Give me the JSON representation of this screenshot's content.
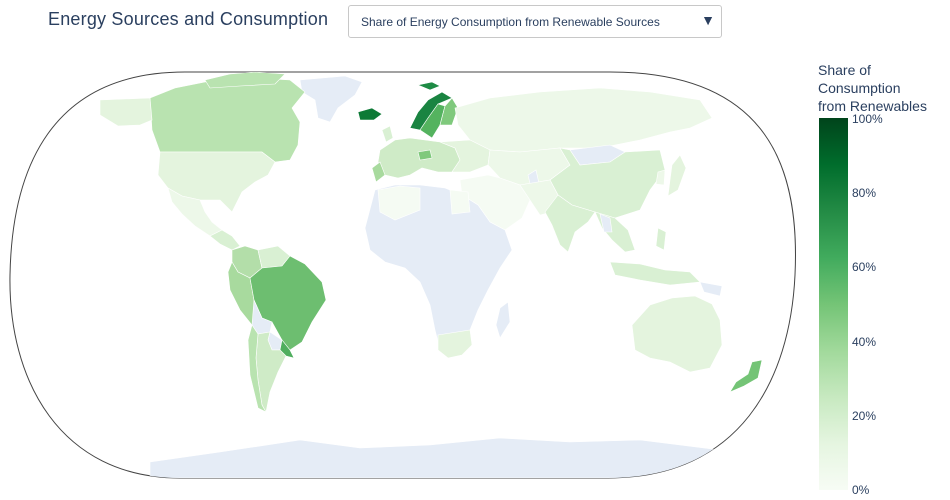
{
  "app": {
    "title": "Energy Sources and Consumption"
  },
  "dropdown": {
    "selected": "Share of Energy Consumption from Renewable Sources"
  },
  "colorbar": {
    "title_lines": [
      "Share of",
      "Consumption",
      "from Renewables"
    ],
    "ticks": [
      "100%",
      "80%",
      "60%",
      "40%",
      "20%",
      "0%"
    ],
    "colorscale": "Greens"
  },
  "colors": {
    "no_data": "#e5ecf6",
    "border": "#ffffff",
    "frame": "#444444",
    "text": "#2a3f5f"
  },
  "map": {
    "projection": "natural earth"
  }
}
